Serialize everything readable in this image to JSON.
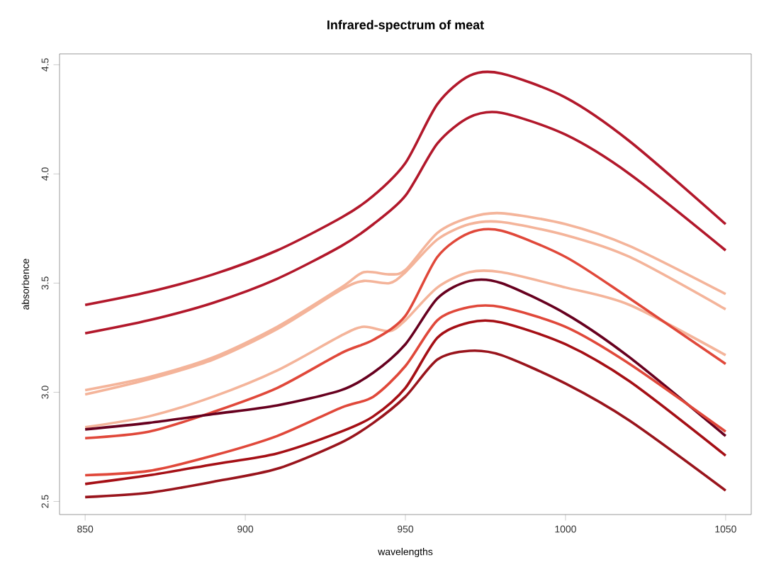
{
  "chart_data": {
    "type": "line",
    "title": "Infrared-spectrum of meat",
    "xlabel": "wavelengths",
    "ylabel": "absorbence",
    "x": [
      850,
      870,
      890,
      910,
      930,
      940,
      950,
      960,
      970,
      980,
      1000,
      1020,
      1050
    ],
    "series": [
      {
        "color": "#b2182b",
        "values": [
          3.4,
          3.46,
          3.54,
          3.65,
          3.8,
          3.9,
          4.05,
          4.32,
          4.45,
          4.46,
          4.35,
          4.15,
          3.77
        ]
      },
      {
        "color": "#b2182b",
        "values": [
          3.27,
          3.33,
          3.41,
          3.52,
          3.67,
          3.77,
          3.9,
          4.14,
          4.26,
          4.28,
          4.18,
          4.0,
          3.65
        ]
      },
      {
        "color": "#f4b49a",
        "x": [
          850,
          870,
          890,
          910,
          930,
          937,
          945,
          950,
          960,
          970,
          980,
          1000,
          1020,
          1050
        ],
        "values": [
          3.01,
          3.07,
          3.16,
          3.3,
          3.48,
          3.55,
          3.54,
          3.56,
          3.73,
          3.8,
          3.82,
          3.77,
          3.67,
          3.45
        ]
      },
      {
        "color": "#f4b49a",
        "x": [
          850,
          870,
          890,
          910,
          930,
          937,
          945,
          950,
          960,
          970,
          980,
          1000,
          1020,
          1050
        ],
        "values": [
          2.99,
          3.06,
          3.15,
          3.29,
          3.47,
          3.51,
          3.5,
          3.55,
          3.7,
          3.77,
          3.78,
          3.72,
          3.62,
          3.38
        ]
      },
      {
        "color": "#f4b49a",
        "x": [
          850,
          870,
          890,
          910,
          930,
          937,
          945,
          950,
          960,
          970,
          980,
          1000,
          1020,
          1050
        ],
        "values": [
          2.84,
          2.89,
          2.98,
          3.1,
          3.26,
          3.3,
          3.28,
          3.33,
          3.48,
          3.55,
          3.55,
          3.48,
          3.4,
          3.17
        ]
      },
      {
        "color": "#e0483a",
        "values": [
          2.79,
          2.82,
          2.91,
          3.02,
          3.18,
          3.24,
          3.35,
          3.62,
          3.73,
          3.74,
          3.62,
          3.43,
          3.13
        ]
      },
      {
        "color": "#67001f",
        "values": [
          2.83,
          2.86,
          2.9,
          2.94,
          3.01,
          3.09,
          3.22,
          3.43,
          3.51,
          3.5,
          3.36,
          3.16,
          2.8
        ]
      },
      {
        "color": "#e0483a",
        "values": [
          2.62,
          2.64,
          2.71,
          2.8,
          2.93,
          2.98,
          3.12,
          3.33,
          3.39,
          3.39,
          3.3,
          3.13,
          2.82
        ]
      },
      {
        "color": "#a50f15",
        "values": [
          2.58,
          2.62,
          2.67,
          2.72,
          2.82,
          2.89,
          3.02,
          3.25,
          3.32,
          3.32,
          3.22,
          3.05,
          2.71
        ]
      },
      {
        "color": "#99141c",
        "values": [
          2.52,
          2.54,
          2.59,
          2.65,
          2.77,
          2.86,
          2.98,
          3.15,
          3.19,
          3.17,
          3.04,
          2.87,
          2.55
        ]
      }
    ],
    "xlim": [
      842,
      1058
    ],
    "ylim": [
      2.44,
      4.55
    ],
    "xticks": [
      850,
      900,
      950,
      1000,
      1050
    ],
    "yticks": [
      2.5,
      {
        "value": 3,
        "label": "3.0"
      },
      3.5,
      {
        "value": 4,
        "label": "4.0"
      },
      4.5
    ],
    "grid": false,
    "marker": "none",
    "line_style": "solid"
  }
}
